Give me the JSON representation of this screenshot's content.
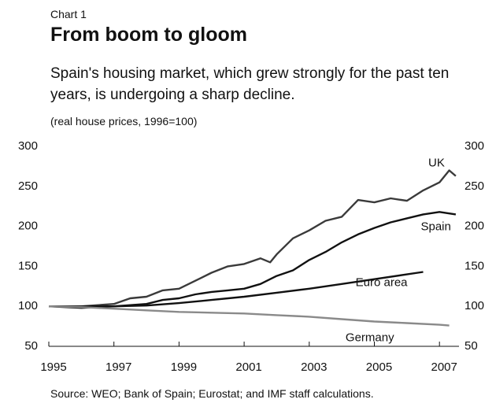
{
  "kicker": "Chart 1",
  "chart_data": {
    "type": "line",
    "title": "From boom to gloom",
    "subtitle": "Spain's housing market, which grew strongly for the past ten years, is undergoing a sharp decline.",
    "note": "(real house prices, 1996=100)",
    "source": "Source: WEO; Bank of Spain; Eurostat; and IMF staff calculations.",
    "xlim": [
      1995,
      2007.6
    ],
    "xticks": [
      1995,
      1997,
      1999,
      2001,
      2003,
      2005,
      2007
    ],
    "ylim": [
      50,
      300
    ],
    "yticks": [
      50,
      100,
      150,
      200,
      250,
      300
    ],
    "y2lim": [
      50,
      300
    ],
    "y2ticks": [
      50,
      100,
      150,
      200,
      250,
      300
    ],
    "series": [
      {
        "name": "UK",
        "color": "#3a3a3a",
        "x": [
          1995,
          1996,
          1997,
          1997.5,
          1998,
          1998.5,
          1999,
          1999.5,
          2000,
          2000.5,
          2001,
          2001.5,
          2001.8,
          2002,
          2002.5,
          2003,
          2003.5,
          2004,
          2004.5,
          2005,
          2005.5,
          2006,
          2006.5,
          2007,
          2007.3,
          2007.5
        ],
        "values": [
          100,
          100,
          103,
          110,
          112,
          120,
          122,
          132,
          142,
          150,
          153,
          160,
          155,
          165,
          185,
          195,
          207,
          212,
          233,
          230,
          235,
          232,
          245,
          255,
          270,
          263
        ]
      },
      {
        "name": "Spain",
        "color": "#111111",
        "x": [
          1995,
          1996,
          1997,
          1998,
          1998.5,
          1999,
          1999.5,
          2000,
          2000.5,
          2001,
          2001.5,
          2002,
          2002.5,
          2003,
          2003.5,
          2004,
          2004.5,
          2005,
          2005.5,
          2006,
          2006.5,
          2007,
          2007.5
        ],
        "values": [
          100,
          98,
          100,
          103,
          108,
          110,
          115,
          118,
          120,
          122,
          128,
          138,
          145,
          158,
          168,
          180,
          190,
          198,
          205,
          210,
          215,
          218,
          215
        ]
      },
      {
        "name": "Euro area",
        "color": "#111111",
        "x": [
          1995,
          1996,
          1997,
          1998,
          1999,
          2000,
          2001,
          2002,
          2003,
          2004,
          2005,
          2006,
          2006.5
        ],
        "values": [
          100,
          100,
          100,
          101,
          104,
          108,
          112,
          117,
          122,
          128,
          134,
          140,
          143
        ]
      },
      {
        "name": "Germany",
        "color": "#8a8a8a",
        "x": [
          1995,
          1996,
          1997,
          1998,
          1999,
          2000,
          2001,
          2002,
          2003,
          2004,
          2005,
          2006,
          2007,
          2007.3
        ],
        "values": [
          100,
          99,
          97,
          95,
          93,
          92,
          91,
          89,
          87,
          84,
          81,
          79,
          77,
          76
        ]
      }
    ]
  }
}
